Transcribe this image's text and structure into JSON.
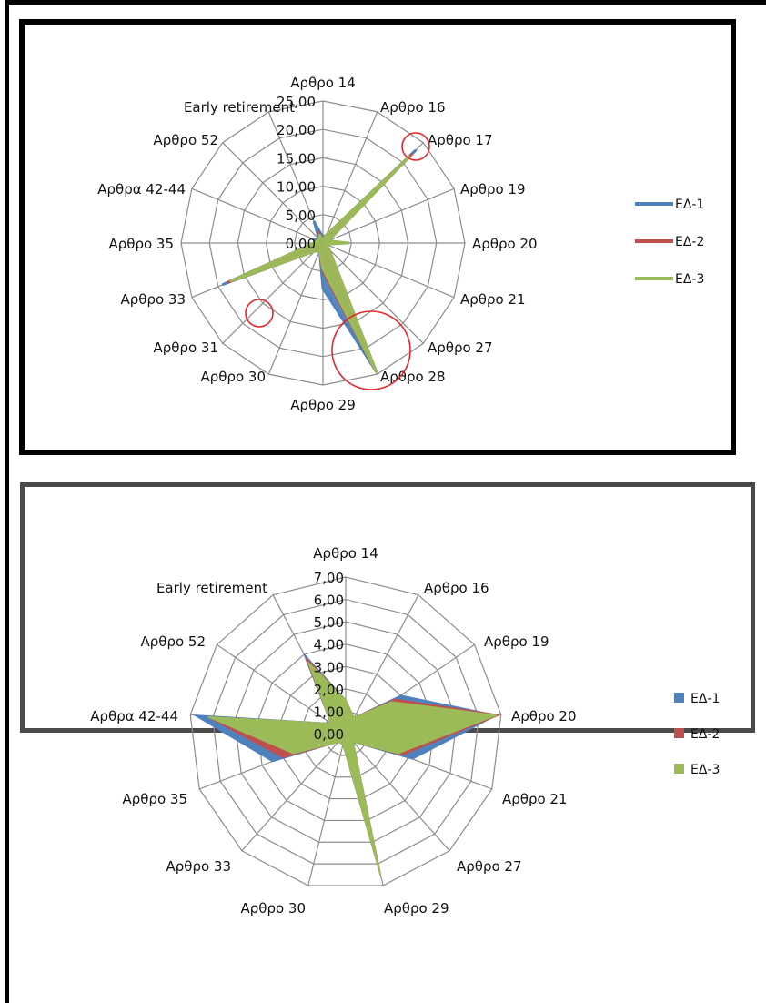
{
  "chart_data": [
    {
      "type": "radar",
      "categories": [
        "Αρθρο 14",
        "Αρθρο 16",
        "Αρθρο 17",
        "Αρθρο 19",
        "Αρθρο 20",
        "Αρθρο 21",
        "Αρθρο 27",
        "Αρθρο 28",
        "Αρθρο 29",
        "Αρθρο 30",
        "Αρθρο 31",
        "Αρθρο 33",
        "Αρθρο 35",
        "Αρθρα 42-44",
        "Αρθρο 52",
        "Early retirement"
      ],
      "ticks": [
        "0,00",
        "5,00",
        "10,00",
        "15,00",
        "20,00",
        "25,00"
      ],
      "ylim": [
        0,
        25
      ],
      "series": [
        {
          "name": "ΕΔ-1",
          "color": "#4f81bd",
          "values": [
            1.0,
            1.5,
            23.0,
            1.0,
            3.5,
            0.5,
            1.5,
            24.5,
            8.0,
            1.5,
            2.0,
            19.0,
            1.5,
            1.5,
            1.0,
            4.0
          ]
        },
        {
          "name": "ΕΔ-2",
          "color": "#c0504d",
          "values": [
            0.5,
            1.5,
            22.0,
            1.0,
            3.5,
            0.5,
            1.5,
            24.5,
            5.0,
            1.5,
            2.0,
            18.0,
            1.5,
            1.0,
            1.0,
            2.0
          ]
        },
        {
          "name": "ΕΔ-3",
          "color": "#9bbb59",
          "values": [
            0.5,
            1.5,
            21.5,
            1.0,
            4.5,
            0.5,
            1.5,
            24.5,
            4.5,
            1.5,
            2.0,
            17.5,
            1.5,
            1.0,
            1.0,
            1.5
          ]
        }
      ],
      "legend": "right",
      "legend_style": "line",
      "highlight_categories": [
        "Αρθρο 17",
        "Αρθρο 33",
        "Αρθρο 28"
      ]
    },
    {
      "type": "radar",
      "categories": [
        "Αρθρο 14",
        "Αρθρο 16",
        "Αρθρο 19",
        "Αρθρο 20",
        "Αρθρο 21",
        "Αρθρο 27",
        "Αρθρο 29",
        "Αρθρο 30",
        "Αρθρο 33",
        "Αρθρο 35",
        "Αρθρα 42-44",
        "Αρθρο 52",
        "Early retirement"
      ],
      "ticks": [
        "0,00",
        "1,00",
        "2,00",
        "3,00",
        "4,00",
        "5,00",
        "6,00",
        "7,00"
      ],
      "ylim": [
        0,
        7
      ],
      "series": [
        {
          "name": "ΕΔ-1",
          "color": "#4f81bd",
          "values": [
            1.5,
            0.8,
            3.0,
            6.8,
            3.2,
            0.5,
            6.5,
            0.5,
            0.5,
            3.5,
            6.8,
            0.8,
            4.0
          ]
        },
        {
          "name": "ΕΔ-2",
          "color": "#c0504d",
          "values": [
            1.5,
            0.8,
            2.7,
            6.9,
            2.7,
            0.5,
            6.5,
            0.5,
            0.5,
            3.0,
            6.2,
            0.8,
            3.8
          ]
        },
        {
          "name": "ΕΔ-3",
          "color": "#9bbb59",
          "values": [
            1.5,
            0.8,
            2.5,
            6.8,
            2.5,
            0.5,
            6.5,
            0.5,
            0.5,
            2.5,
            6.2,
            0.8,
            3.6
          ]
        }
      ],
      "legend": "right",
      "legend_style": "square"
    }
  ]
}
